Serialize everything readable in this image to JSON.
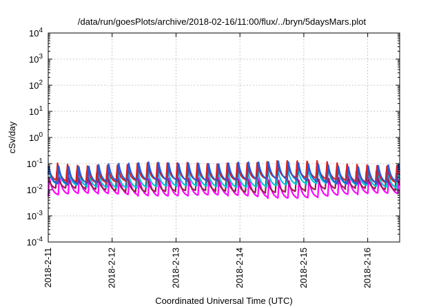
{
  "chart_data": {
    "type": "line",
    "title": "/data/run/goesPlots/archive/2018-02-16/11:00/flux/../bryn/5daysMars.plot",
    "xlabel": "Coordinated Universal Time (UTC)",
    "ylabel": "cSv/day",
    "y_scale": "log",
    "ylim": [
      0.0001,
      10000
    ],
    "y_ticks": [
      {
        "value": 0.0001,
        "base": "10",
        "exp": "-4"
      },
      {
        "value": 0.001,
        "base": "10",
        "exp": "-3"
      },
      {
        "value": 0.01,
        "base": "10",
        "exp": "-2"
      },
      {
        "value": 0.1,
        "base": "10",
        "exp": "-1"
      },
      {
        "value": 1,
        "base": "10",
        "exp": "0"
      },
      {
        "value": 10,
        "base": "10",
        "exp": "1"
      },
      {
        "value": 100,
        "base": "10",
        "exp": "2"
      },
      {
        "value": 1000,
        "base": "10",
        "exp": "3"
      },
      {
        "value": 10000,
        "base": "10",
        "exp": "4"
      }
    ],
    "x_ticks": [
      "2018-2-11",
      "2018-2-12",
      "2018-2-13",
      "2018-2-14",
      "2018-2-15",
      "2018-2-16"
    ],
    "xlim_days": [
      0,
      5.5
    ],
    "grid": true,
    "series": [
      {
        "color": "#ff00ff",
        "peak": 0.03,
        "trough": 0.0055,
        "phase": 0.0
      },
      {
        "color": "#9b1c4e",
        "peak": 0.045,
        "trough": 0.0085,
        "phase": 0.04
      },
      {
        "color": "#00c8d2",
        "peak": 0.06,
        "trough": 0.013,
        "phase": 0.02
      },
      {
        "color": "#dc1e1e",
        "peak": 0.11,
        "trough": 0.022,
        "phase": 0.03
      },
      {
        "color": "#2a5bd6",
        "peak": 0.105,
        "trough": 0.02,
        "phase": 0.01
      }
    ],
    "cycles_per_day": 6.4,
    "colors": {
      "frame": "#000000",
      "grid": "#a0a0a0"
    }
  }
}
